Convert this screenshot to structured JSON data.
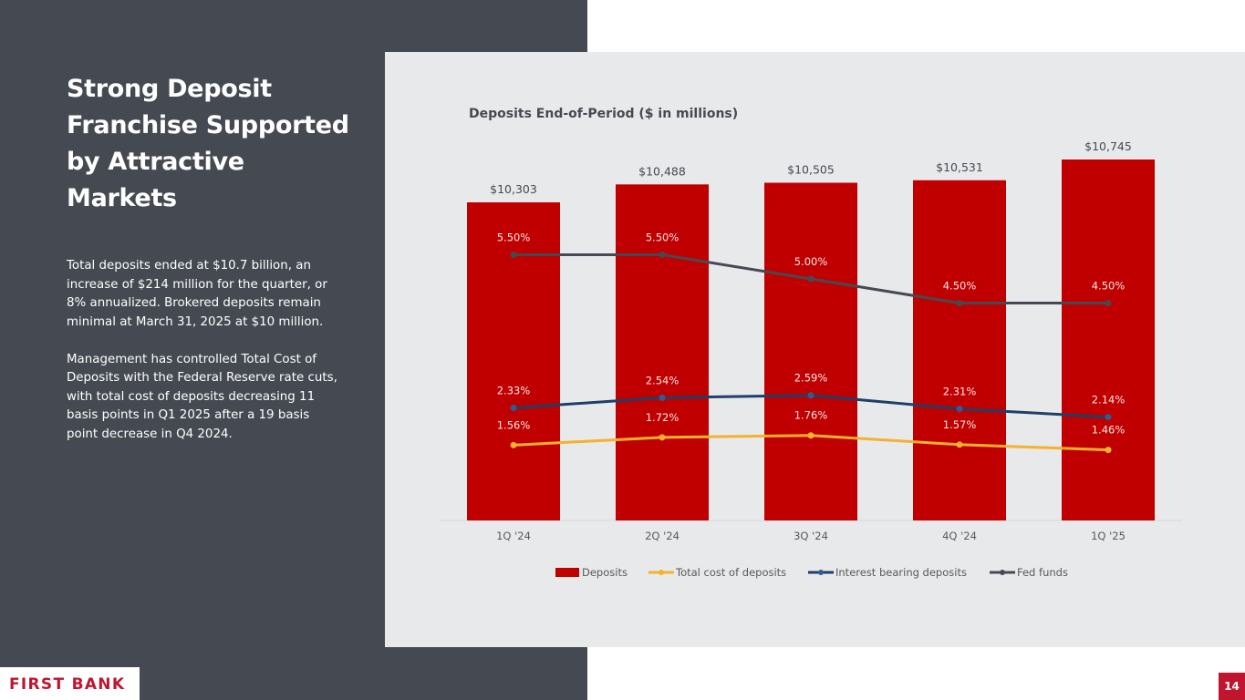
{
  "slide": {
    "title": "Strong Deposit Franchise Supported by Attractive Markets",
    "paragraphs": [
      "Total deposits ended at $10.7 billion, an increase of $214 million for the quarter, or 8% annualized. Brokered deposits remain minimal at March 31, 2025 at $10 million.",
      "Management has controlled Total Cost of Deposits with the Federal Reserve rate cuts, with total cost of deposits decreasing 11 basis points in Q1 2025 after a 19 basis point decrease in Q4 2024."
    ],
    "logo": "FIRST BANK",
    "page_number": "14"
  },
  "colors": {
    "dark_panel": "#454a52",
    "chart_bg": "#e8e9eb",
    "brand_red": "#c0152f",
    "deposits": "#c00000",
    "total_cost": "#f4b12e",
    "interest_bearing": "#1f3f68",
    "fed_funds": "#454a52"
  },
  "chart_data": {
    "type": "bar",
    "title": "Deposits End-of-Period ($ in millions)",
    "categories": [
      "1Q '24",
      "2Q '24",
      "3Q '24",
      "4Q '24",
      "1Q '25"
    ],
    "series": [
      {
        "name": "Deposits",
        "type": "bar",
        "axis": "primary",
        "values": [
          10303,
          10488,
          10505,
          10531,
          10745
        ],
        "labels": [
          "$10,303",
          "$10,488",
          "$10,505",
          "$10,531",
          "$10,745"
        ]
      },
      {
        "name": "Total cost of deposits",
        "type": "line",
        "axis": "secondary",
        "values": [
          1.56,
          1.72,
          1.76,
          1.57,
          1.46
        ],
        "labels": [
          "1.56%",
          "1.72%",
          "1.76%",
          "1.57%",
          "1.46%"
        ]
      },
      {
        "name": "Interest bearing deposits",
        "type": "line",
        "axis": "secondary",
        "values": [
          2.33,
          2.54,
          2.59,
          2.31,
          2.14
        ],
        "labels": [
          "2.33%",
          "2.54%",
          "2.59%",
          "2.31%",
          "2.14%"
        ]
      },
      {
        "name": "Fed funds",
        "type": "line",
        "axis": "secondary",
        "values": [
          5.5,
          5.5,
          5.0,
          4.5,
          4.5
        ],
        "labels": [
          "5.50%",
          "5.50%",
          "5.00%",
          "4.50%",
          "4.50%"
        ]
      }
    ],
    "xlabel": "",
    "ylabel": "",
    "ylim_primary": [
      7020,
      11000
    ],
    "ylim_secondary": [
      0,
      7
    ],
    "grid": false,
    "axes_visible": false,
    "legend": "bottom"
  }
}
